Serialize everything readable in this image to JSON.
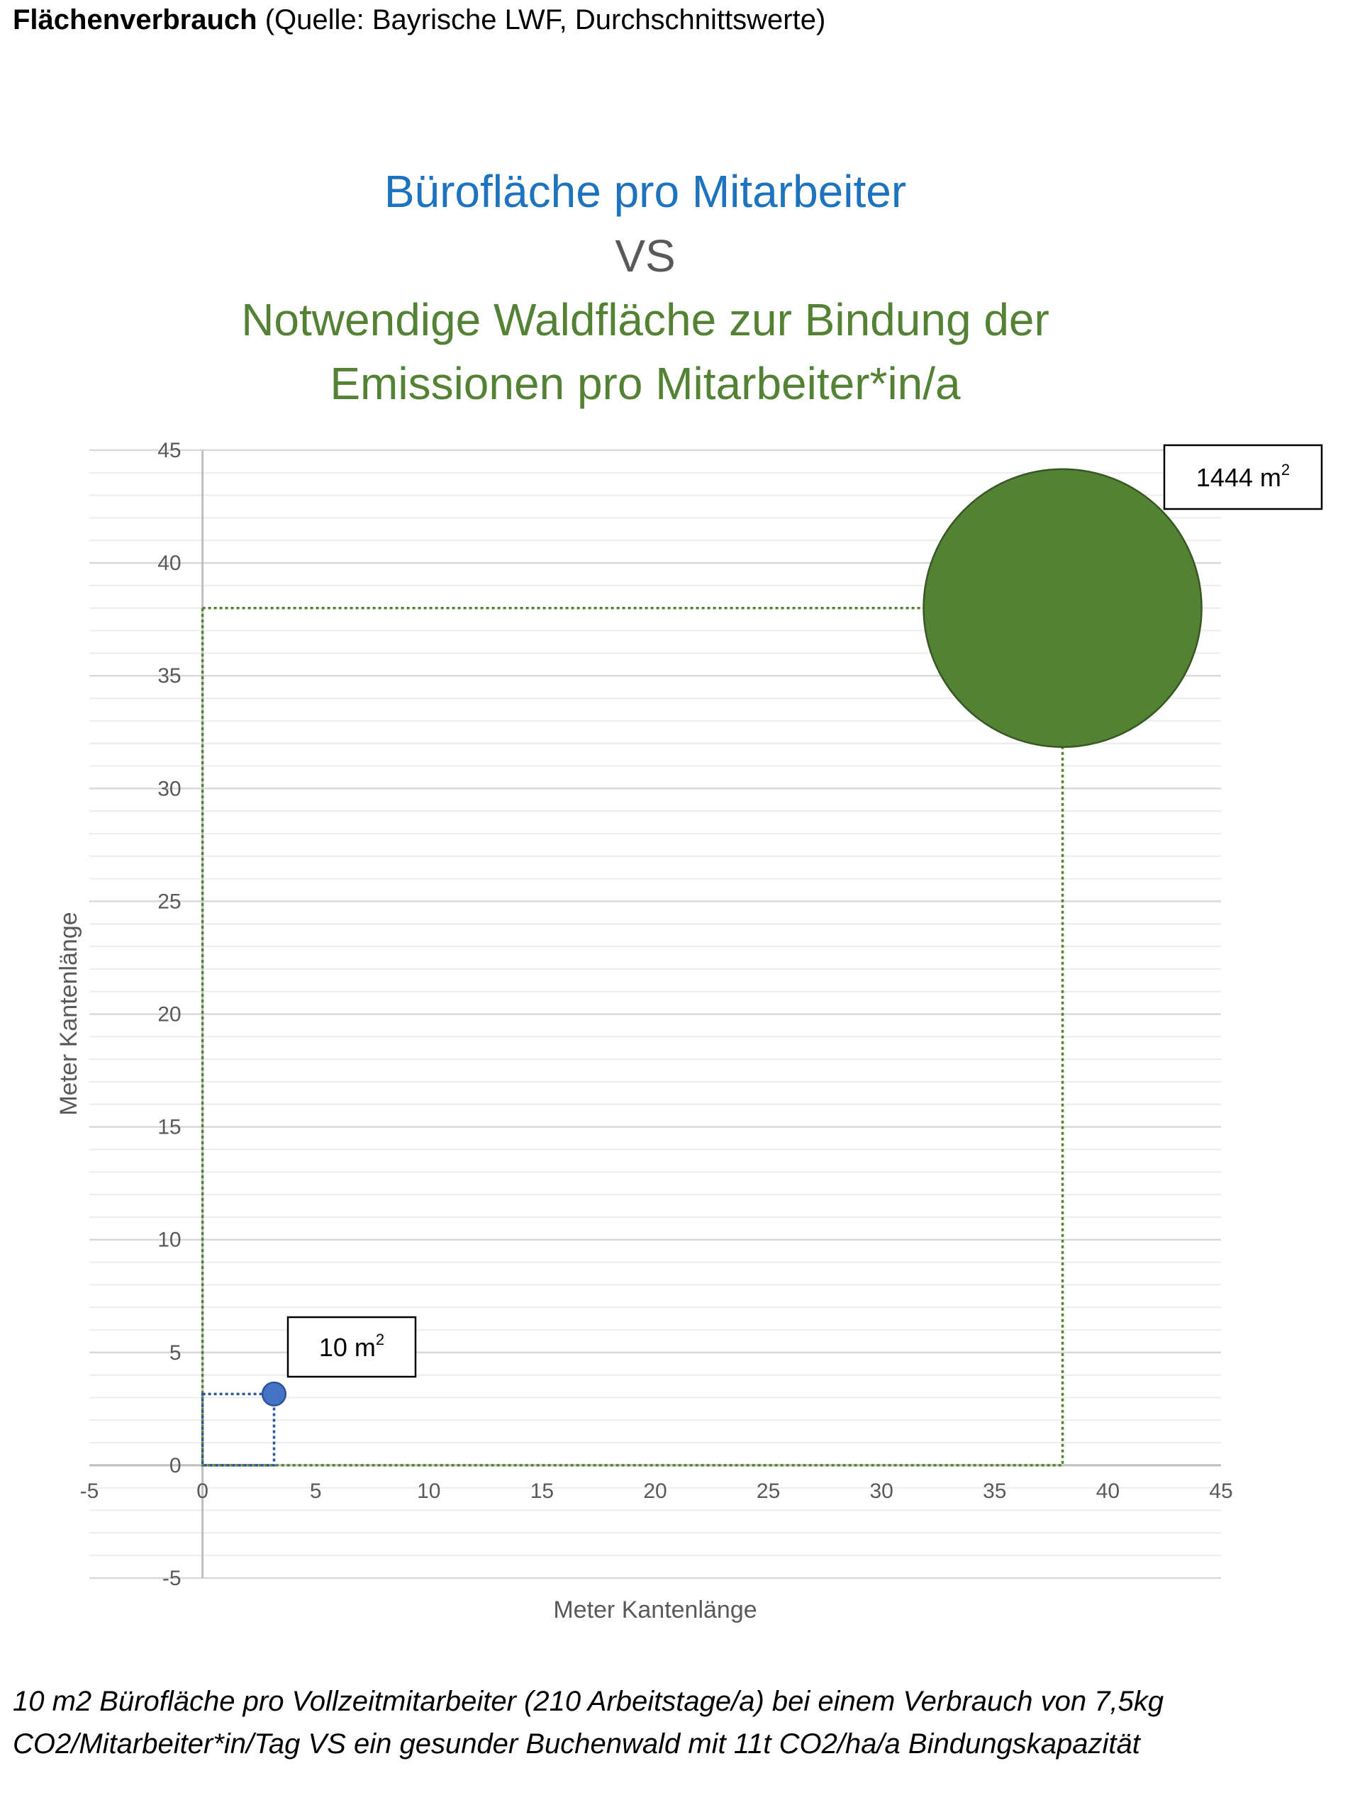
{
  "header": {
    "title_bold": "Flächenverbrauch",
    "title_rest": " (Quelle: Bayrische LWF, Durchschnittswerte)"
  },
  "chart_title": {
    "line1": "Bürofläche pro Mitarbeiter",
    "line2": "VS",
    "line3": "Notwendige Waldfläche zur Bindung der",
    "line4": "Emissionen pro Mitarbeiter*in/a"
  },
  "chart_data": {
    "type": "scatter",
    "title": "Bürofläche pro Mitarbeiter VS Notwendige Waldfläche zur Bindung der Emissionen pro Mitarbeiter*in/a",
    "xlabel": "Meter Kantenlänge",
    "ylabel": "Meter Kantenlänge",
    "xlim": [
      -5,
      45
    ],
    "ylim": [
      -5,
      45
    ],
    "x_ticks": [
      -5,
      0,
      5,
      10,
      15,
      20,
      25,
      30,
      35,
      40,
      45
    ],
    "y_ticks": [
      -5,
      0,
      5,
      10,
      15,
      20,
      25,
      30,
      35,
      40,
      45
    ],
    "minor_gridlines_per_major": 5,
    "grid": true,
    "points": [
      {
        "x": 3.16,
        "y": 3.16,
        "size_m2": 10,
        "label": "10 m",
        "label_sup": "2",
        "color": "#4472c4",
        "outline": "#2f5597"
      },
      {
        "x": 38,
        "y": 38,
        "size_m2": 1444,
        "label": "1444 m",
        "label_sup": "2",
        "color": "#548235",
        "outline": "#385723"
      }
    ],
    "colors": {
      "office_square": "#2f5597",
      "forest_square": "#548235",
      "major_grid": "#d9d9d9",
      "minor_grid": "#ececec",
      "axis": "#bfbfbf"
    }
  },
  "footnote": {
    "line1": "10 m2 Bürofläche pro Vollzeitmitarbeiter (210 Arbeitstage/a)  bei einem Verbrauch von 7,5kg",
    "line2": "CO2/Mitarbeiter*in/Tag VS ein gesunder Buchenwald mit 11t CO2/ha/a Bindungskapazität"
  }
}
